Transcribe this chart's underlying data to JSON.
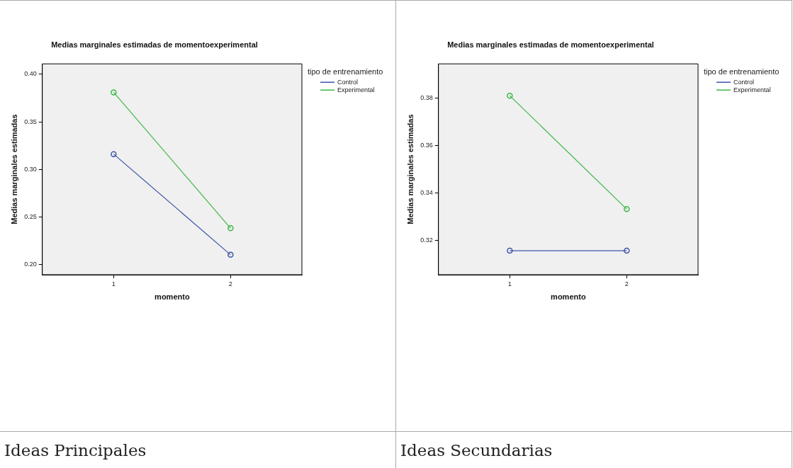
{
  "chart_data": [
    {
      "type": "line",
      "title": "Medias marginales estimadas de momentoexperimental",
      "xlabel": "momento",
      "ylabel": "Medias marginales estimadas",
      "legend_title": "tipo de entrenamiento",
      "categories": [
        "1",
        "2"
      ],
      "series": [
        {
          "name": "Control",
          "color": "#3e55ab",
          "values": [
            0.316,
            0.21
          ]
        },
        {
          "name": "Experimental",
          "color": "#3cb846",
          "values": [
            0.381,
            0.238
          ]
        }
      ],
      "ylim": [
        0.189,
        0.411
      ],
      "yticks": [
        {
          "value": 0.2,
          "label": "0.20"
        },
        {
          "value": 0.25,
          "label": "0.25"
        },
        {
          "value": 0.3,
          "label": "0.30"
        },
        {
          "value": 0.35,
          "label": "0.35"
        },
        {
          "value": 0.4,
          "label": "0.40"
        }
      ],
      "grid": false,
      "legend": "top right",
      "marker": "circle",
      "line_style": "solid",
      "annotations": [
        "Ideas Principales"
      ]
    },
    {
      "type": "line",
      "title": "Medias marginales estimadas de momentoexperimental",
      "xlabel": "momento",
      "ylabel": "Medias marginales estimadas",
      "legend_title": "tipo de entrenamiento",
      "categories": [
        "1",
        "2"
      ],
      "series": [
        {
          "name": "Control",
          "color": "#3e55ab",
          "values": [
            0.3158,
            0.3158
          ]
        },
        {
          "name": "Experimental",
          "color": "#3cb846",
          "values": [
            0.381,
            0.3333
          ]
        }
      ],
      "ylim": [
        0.3057,
        0.3944
      ],
      "yticks": [
        {
          "value": 0.32,
          "label": "0.32"
        },
        {
          "value": 0.34,
          "label": "0.34"
        },
        {
          "value": 0.36,
          "label": "0.36"
        },
        {
          "value": 0.38,
          "label": "0.38"
        }
      ],
      "grid": false,
      "legend": "top right",
      "marker": "circle",
      "line_style": "solid",
      "annotations": [
        "Ideas Secundarias"
      ]
    }
  ]
}
